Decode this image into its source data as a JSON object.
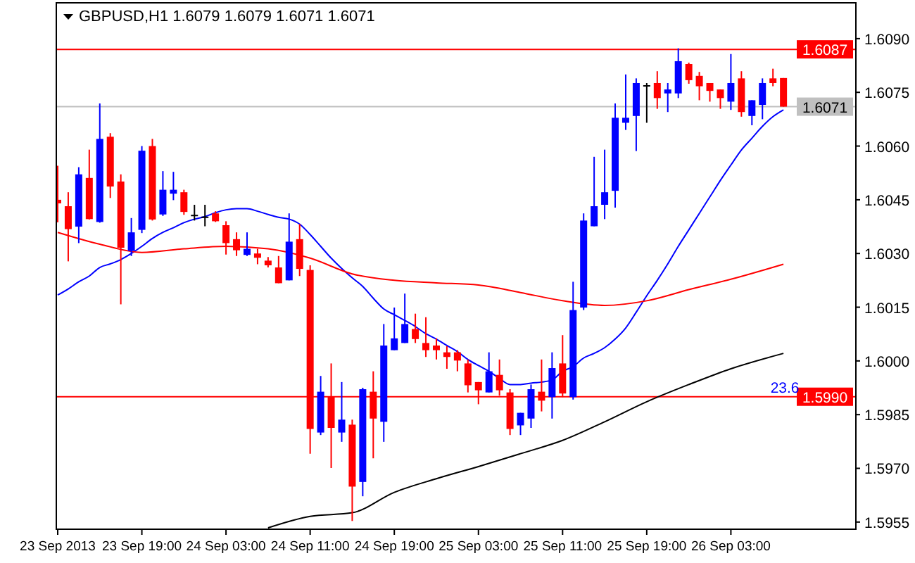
{
  "chart_data": {
    "type": "candlestick",
    "title": "GBPUSD,H1 1.6079 1.6079 1.6071 1.6071",
    "x": [
      "2013-09-23T11:00",
      "2013-09-23T12:00",
      "2013-09-23T13:00",
      "2013-09-23T14:00",
      "2013-09-23T15:00",
      "2013-09-23T16:00",
      "2013-09-23T17:00",
      "2013-09-23T18:00",
      "2013-09-23T19:00",
      "2013-09-23T20:00",
      "2013-09-23T21:00",
      "2013-09-23T22:00",
      "2013-09-23T23:00",
      "2013-09-24T00:00",
      "2013-09-24T01:00",
      "2013-09-24T02:00",
      "2013-09-24T03:00",
      "2013-09-24T04:00",
      "2013-09-24T05:00",
      "2013-09-24T06:00",
      "2013-09-24T07:00",
      "2013-09-24T08:00",
      "2013-09-24T09:00",
      "2013-09-24T10:00",
      "2013-09-24T11:00",
      "2013-09-24T12:00",
      "2013-09-24T13:00",
      "2013-09-24T14:00",
      "2013-09-24T15:00",
      "2013-09-24T16:00",
      "2013-09-24T17:00",
      "2013-09-24T18:00",
      "2013-09-24T19:00",
      "2013-09-24T20:00",
      "2013-09-24T21:00",
      "2013-09-24T22:00",
      "2013-09-24T23:00",
      "2013-09-25T00:00",
      "2013-09-25T01:00",
      "2013-09-25T02:00",
      "2013-09-25T03:00",
      "2013-09-25T04:00",
      "2013-09-25T05:00",
      "2013-09-25T06:00",
      "2013-09-25T07:00",
      "2013-09-25T08:00",
      "2013-09-25T09:00",
      "2013-09-25T10:00",
      "2013-09-25T11:00",
      "2013-09-25T12:00",
      "2013-09-25T13:00",
      "2013-09-25T14:00",
      "2013-09-25T15:00",
      "2013-09-25T16:00",
      "2013-09-25T17:00",
      "2013-09-25T18:00",
      "2013-09-25T19:00",
      "2013-09-25T20:00",
      "2013-09-25T21:00",
      "2013-09-25T22:00",
      "2013-09-25T23:00",
      "2013-09-26T00:00",
      "2013-09-26T01:00",
      "2013-09-26T02:00",
      "2013-09-26T03:00",
      "2013-09-26T04:00",
      "2013-09-26T05:00",
      "2013-09-26T06:00",
      "2013-09-26T07:00",
      "2013-09-26T08:00"
    ],
    "ohlc": [
      [
        1.6045,
        1.60545,
        1.60387,
        1.6044
      ],
      [
        1.60432,
        1.60471,
        1.60278,
        1.60368
      ],
      [
        1.60375,
        1.60541,
        1.60329,
        1.60521
      ],
      [
        1.60511,
        1.6059,
        1.60395,
        1.60396
      ],
      [
        1.60388,
        1.60719,
        1.60386,
        1.6062
      ],
      [
        1.60626,
        1.60636,
        1.60455,
        1.60487
      ],
      [
        1.60501,
        1.60521,
        1.60158,
        1.60316
      ],
      [
        1.60307,
        1.60399,
        1.60293,
        1.60359
      ],
      [
        1.60366,
        1.606,
        1.60357,
        1.60587
      ],
      [
        1.606,
        1.6062,
        1.60392,
        1.60395
      ],
      [
        1.60409,
        1.6053,
        1.60405,
        1.60478
      ],
      [
        1.60467,
        1.60528,
        1.60449,
        1.60478
      ],
      [
        1.60471,
        1.60478,
        1.60408,
        1.60416
      ],
      [
        1.60408,
        1.60436,
        1.60392,
        1.60408
      ],
      [
        1.60403,
        1.60436,
        1.60376,
        1.60403
      ],
      [
        1.60412,
        1.60418,
        1.60388,
        1.6039
      ],
      [
        1.60379,
        1.6039,
        1.60297,
        1.60329
      ],
      [
        1.6034,
        1.60359,
        1.60293,
        1.60309
      ],
      [
        1.60296,
        1.60359,
        1.60293,
        1.60313
      ],
      [
        1.603,
        1.60313,
        1.6027,
        1.60288
      ],
      [
        1.6028,
        1.6029,
        1.60261,
        1.60267
      ],
      [
        1.60261,
        1.60293,
        1.60217,
        1.60217
      ],
      [
        1.60225,
        1.60412,
        1.60225,
        1.60333
      ],
      [
        1.6034,
        1.60382,
        1.60237,
        1.60257
      ],
      [
        1.60254,
        1.60267,
        1.59741,
        1.5981
      ],
      [
        1.598,
        1.59958,
        1.59793,
        1.59914
      ],
      [
        1.59901,
        1.59993,
        1.59701,
        1.59813
      ],
      [
        1.598,
        1.59941,
        1.59774,
        1.59836
      ],
      [
        1.59822,
        1.59836,
        1.59553,
        1.59649
      ],
      [
        1.59662,
        1.59925,
        1.59622,
        1.59921
      ],
      [
        1.59914,
        1.59971,
        1.59728,
        1.59839
      ],
      [
        1.5983,
        1.60103,
        1.59774,
        1.60043
      ],
      [
        1.6003,
        1.60149,
        1.6003,
        1.60063
      ],
      [
        1.6005,
        1.60188,
        1.6005,
        1.60103
      ],
      [
        1.60089,
        1.60132,
        1.6005,
        1.60061
      ],
      [
        1.6005,
        1.60122,
        1.60011,
        1.6003
      ],
      [
        1.60043,
        1.60063,
        1.60004,
        1.6003
      ],
      [
        1.60024,
        1.60041,
        1.59978,
        1.60011
      ],
      [
        1.60024,
        1.6003,
        1.59971,
        1.60001
      ],
      [
        1.59993,
        1.60004,
        1.59912,
        1.59932
      ],
      [
        1.59941,
        1.59941,
        1.59879,
        1.59918
      ],
      [
        1.59912,
        1.60024,
        1.59912,
        1.59971
      ],
      [
        1.59961,
        1.60004,
        1.59903,
        1.59918
      ],
      [
        1.59912,
        1.59921,
        1.59793,
        1.5981
      ],
      [
        1.5982,
        1.59855,
        1.59793,
        1.59855
      ],
      [
        1.59839,
        1.59934,
        1.59813,
        1.59921
      ],
      [
        1.59914,
        1.60004,
        1.59859,
        1.59889
      ],
      [
        1.59899,
        1.60024,
        1.59839,
        1.5998
      ],
      [
        1.59993,
        1.60072,
        1.59899,
        1.59909
      ],
      [
        1.59899,
        1.60221,
        1.59892,
        1.60142
      ],
      [
        1.60149,
        1.60412,
        1.60142,
        1.60392
      ],
      [
        1.60376,
        1.6057,
        1.60376,
        1.60432
      ],
      [
        1.60436,
        1.6059,
        1.60396,
        1.60471
      ],
      [
        1.60475,
        1.60719,
        1.60428,
        1.60679
      ],
      [
        1.60665,
        1.608,
        1.60645,
        1.60679
      ],
      [
        1.60684,
        1.60789,
        1.60586,
        1.60776
      ],
      [
        1.6077,
        1.60776,
        1.60665,
        1.6077
      ],
      [
        1.60776,
        1.60809,
        1.60704,
        1.60734
      ],
      [
        1.60747,
        1.60776,
        1.60695,
        1.60758
      ],
      [
        1.60747,
        1.60873,
        1.60734,
        1.60837
      ],
      [
        1.60829,
        1.60833,
        1.60774,
        1.60784
      ],
      [
        1.60796,
        1.60807,
        1.60728,
        1.60767
      ],
      [
        1.60776,
        1.60776,
        1.60724,
        1.60754
      ],
      [
        1.60758,
        1.60758,
        1.60704,
        1.60734
      ],
      [
        1.60724,
        1.60857,
        1.60701,
        1.60776
      ],
      [
        1.60789,
        1.60809,
        1.60682,
        1.60695
      ],
      [
        1.60684,
        1.60728,
        1.60658,
        1.60728
      ],
      [
        1.60715,
        1.60789,
        1.60675,
        1.60776
      ],
      [
        1.60789,
        1.60816,
        1.60767,
        1.60776
      ],
      [
        1.6079,
        1.6079,
        1.6071,
        1.6071
      ]
    ],
    "colors": [
      "#ff0000",
      "#ff0000",
      "#0000ff",
      "#ff0000",
      "#0000ff",
      "#ff0000",
      "#ff0000",
      "#0000ff",
      "#0000ff",
      "#ff0000",
      "#0000ff",
      "#0000ff",
      "#ff0000",
      "#000000",
      "#000000",
      "#ff0000",
      "#ff0000",
      "#ff0000",
      "#0000ff",
      "#ff0000",
      "#ff0000",
      "#ff0000",
      "#0000ff",
      "#ff0000",
      "#ff0000",
      "#0000ff",
      "#ff0000",
      "#0000ff",
      "#ff0000",
      "#0000ff",
      "#ff0000",
      "#0000ff",
      "#0000ff",
      "#0000ff",
      "#ff0000",
      "#ff0000",
      "#ff0000",
      "#ff0000",
      "#ff0000",
      "#ff0000",
      "#ff0000",
      "#0000ff",
      "#ff0000",
      "#ff0000",
      "#0000ff",
      "#0000ff",
      "#ff0000",
      "#0000ff",
      "#ff0000",
      "#0000ff",
      "#0000ff",
      "#0000ff",
      "#0000ff",
      "#0000ff",
      "#0000ff",
      "#0000ff",
      "#000000",
      "#ff0000",
      "#0000ff",
      "#0000ff",
      "#ff0000",
      "#ff0000",
      "#ff0000",
      "#ff0000",
      "#0000ff",
      "#ff0000",
      "#0000ff",
      "#0000ff",
      "#ff0000",
      "#ff0000"
    ],
    "series": [
      {
        "type": "line",
        "color": "#0000ff",
        "values": [
          1.60184,
          1.60201,
          1.60221,
          1.60237,
          1.60261,
          1.60271,
          1.60283,
          1.603,
          1.6032,
          1.60342,
          1.60359,
          1.60372,
          1.60386,
          1.60396,
          1.60403,
          1.60414,
          1.60422,
          1.60425,
          1.60425,
          1.60418,
          1.60409,
          1.60401,
          1.60396,
          1.60382,
          1.60353,
          1.6032,
          1.60287,
          1.60258,
          1.60232,
          1.60208,
          1.60175,
          1.60145,
          1.60129,
          1.60113,
          1.60096,
          1.60076,
          1.60061,
          1.60043,
          1.60026,
          1.60004,
          1.59987,
          1.59971,
          1.59951,
          1.59934,
          1.59934,
          1.59938,
          1.59941,
          1.59947,
          1.59971,
          1.59984,
          1.60008,
          1.60021,
          1.60037,
          1.60061,
          1.60092,
          1.60136,
          1.60182,
          1.60225,
          1.60271,
          1.6032,
          1.60366,
          1.60412,
          1.60458,
          1.60504,
          1.60547,
          1.60589,
          1.60622,
          1.60655,
          1.60682,
          1.60701
        ]
      },
      {
        "type": "line",
        "color": "#ff0000",
        "x": [
          "2013-09-23T11:00",
          "2013-09-23T15:00",
          "2013-09-23T19:00",
          "2013-09-23T23:00",
          "2013-09-24T03:00",
          "2013-09-24T07:00",
          "2013-09-24T11:00",
          "2013-09-24T15:00",
          "2013-09-24T19:00",
          "2013-09-24T23:00",
          "2013-09-25T03:00",
          "2013-09-25T07:00",
          "2013-09-25T11:00",
          "2013-09-25T15:00",
          "2013-09-25T19:00",
          "2013-09-25T23:00",
          "2013-09-26T03:00",
          "2013-09-26T08:00"
        ],
        "values": [
          1.60359,
          1.60326,
          1.60303,
          1.60313,
          1.6032,
          1.60313,
          1.60287,
          1.60243,
          1.60225,
          1.60218,
          1.60212,
          1.60191,
          1.60168,
          1.60155,
          1.60168,
          1.60199,
          1.60228,
          1.6027
        ]
      },
      {
        "type": "line",
        "color": "#000000",
        "x": [
          "2013-09-24T07:00",
          "2013-09-24T11:00",
          "2013-09-24T15:00",
          "2013-09-24T19:00",
          "2013-09-24T23:00",
          "2013-09-25T03:00",
          "2013-09-25T07:00",
          "2013-09-25T11:00",
          "2013-09-25T15:00",
          "2013-09-25T19:00",
          "2013-09-25T23:00",
          "2013-09-26T03:00",
          "2013-09-26T08:00"
        ],
        "values": [
          1.59534,
          1.59566,
          1.59576,
          1.59633,
          1.59671,
          1.59705,
          1.59741,
          1.59778,
          1.5983,
          1.59886,
          1.59934,
          1.59978,
          1.60021
        ]
      }
    ],
    "xlim": [
      "2013-09-23T10:52",
      "2013-09-26T14:53"
    ],
    "ylim": [
      1.5953,
      1.61
    ],
    "xticks": [
      {
        "value": "2013-09-23T11:00",
        "label": "23 Sep 2013"
      },
      {
        "value": "2013-09-23T19:00",
        "label": "23 Sep 19:00"
      },
      {
        "value": "2013-09-24T03:00",
        "label": "24 Sep 03:00"
      },
      {
        "value": "2013-09-24T11:00",
        "label": "24 Sep 11:00"
      },
      {
        "value": "2013-09-24T19:00",
        "label": "24 Sep 19:00"
      },
      {
        "value": "2013-09-25T03:00",
        "label": "25 Sep 03:00"
      },
      {
        "value": "2013-09-25T11:00",
        "label": "25 Sep 11:00"
      },
      {
        "value": "2013-09-25T19:00",
        "label": "25 Sep 19:00"
      },
      {
        "value": "2013-09-26T03:00",
        "label": "26 Sep 03:00"
      }
    ],
    "yticks": [
      {
        "value": 1.5955,
        "label": "1.5955"
      },
      {
        "value": 1.597,
        "label": "1.5970"
      },
      {
        "value": 1.5985,
        "label": "1.5985"
      },
      {
        "value": 1.6,
        "label": "1.6000"
      },
      {
        "value": 1.6015,
        "label": "1.6015"
      },
      {
        "value": 1.603,
        "label": "1.6030"
      },
      {
        "value": 1.6045,
        "label": "1.6045"
      },
      {
        "value": 1.606,
        "label": "1.6060"
      },
      {
        "value": 1.6075,
        "label": "1.6075"
      },
      {
        "value": 1.609,
        "label": "1.6090"
      }
    ],
    "ref_lines": [
      {
        "axis": "y",
        "value": 1.6087,
        "label": "1.6087",
        "color": "#ff0000"
      },
      {
        "axis": "y",
        "value": 1.6071,
        "label": "1.6071",
        "color": "#c0c0c0"
      },
      {
        "axis": "y",
        "value": 1.599,
        "label": "1.5990",
        "color": "#ff0000"
      }
    ],
    "annotations": [
      {
        "text": "23.6",
        "x": "2013-09-26T09:30",
        "y": 1.599
      }
    ]
  }
}
